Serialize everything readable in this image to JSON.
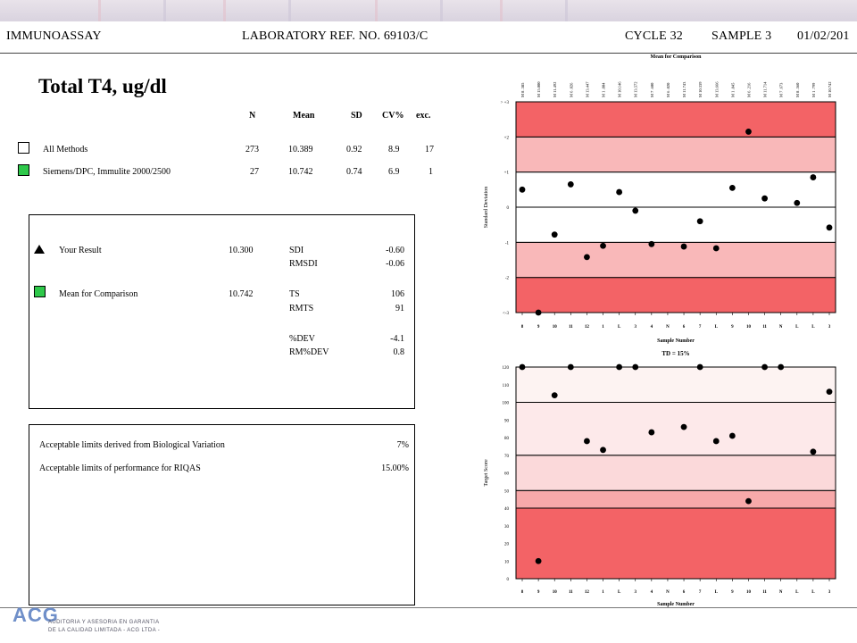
{
  "header": {
    "section": "IMMUNOASSAY",
    "lab_ref": "LABORATORY REF. NO.  69103/C",
    "cycle": "CYCLE 32",
    "sample": "SAMPLE 3",
    "date": "01/02/201"
  },
  "title": "Total T4, ug/dl",
  "stats": {
    "headers": [
      "N",
      "Mean",
      "SD",
      "CV%",
      "exc."
    ],
    "rows": [
      {
        "label": "All Methods",
        "n": "273",
        "mean": "10.389",
        "sd": "0.92",
        "cv": "8.9",
        "exc": "17",
        "marker": "white-box"
      },
      {
        "label": "Siemens/DPC, Immulite 2000/2500",
        "n": "27",
        "mean": "10.742",
        "sd": "0.74",
        "cv": "6.9",
        "exc": "1",
        "marker": "green-box"
      }
    ]
  },
  "results": {
    "your_result_label": "Your Result",
    "your_result_value": "10.300",
    "mean_comp_label": "Mean for Comparison",
    "mean_comp_value": "10.742",
    "metrics": [
      {
        "label": "SDI",
        "value": "-0.60"
      },
      {
        "label": "RMSDI",
        "value": "-0.06"
      },
      {
        "label": "TS",
        "value": "106"
      },
      {
        "label": "RMTS",
        "value": "91"
      },
      {
        "label": "%DEV",
        "value": "-4.1"
      },
      {
        "label": "RM%DEV",
        "value": "0.8"
      }
    ]
  },
  "limits": {
    "bio_label": "Acceptable limits derived from Biological Variation",
    "bio_value": "7%",
    "perf_label": "Acceptable limits of performance for  RIQAS",
    "perf_value": "15.00%"
  },
  "chart_data": [
    {
      "type": "scatter",
      "title": "Mean for Comparison",
      "xlabel": "Sample Number",
      "ylabel": "Standard Deviation",
      "ylim": [
        -3,
        3
      ],
      "y_tick_labels": [
        "> +3",
        "+2",
        "+1",
        "0",
        "-1",
        "-2",
        "<-3"
      ],
      "colors": {
        "outer": "#f36366",
        "middle": "#f9b8b9",
        "inner": "#ffffff"
      },
      "x": [
        "8",
        "9",
        "10",
        "11",
        "12",
        "1",
        "2",
        "3",
        "4",
        "5",
        "6",
        "7",
        "8",
        "9",
        "10",
        "11",
        "12",
        "1",
        "2",
        "3"
      ],
      "x_tick_labels": [
        "8",
        "9",
        "10",
        "11",
        "12",
        "1",
        "L",
        "3",
        "4",
        "N",
        "6",
        "7",
        "L",
        "9",
        "10",
        "11",
        "N",
        "L",
        "L",
        "3"
      ],
      "top_labels": [
        "M 8 .385",
        "M 15.000",
        "M 11.492",
        "M 6 .026",
        "M 13.447",
        "M 1 .804",
        "M 10.146",
        "M 13.572",
        "M 7 .600",
        "M 6 .020",
        "M 11.743",
        "M 10.339",
        "M 13.666",
        "M 1 .845",
        "M 6 .216",
        "M 11.714",
        "M 7 .673",
        "M 8 .560",
        "M 1 .799",
        "M 10.742"
      ],
      "series": [
        {
          "values": [
            0.5,
            -3.0,
            -0.78,
            0.65,
            -1.42,
            -1.1,
            0.43,
            -0.1,
            -1.05,
            null,
            -1.12,
            -0.4,
            -1.17,
            0.55,
            2.15,
            0.25,
            null,
            0.12,
            0.85,
            -0.58
          ]
        }
      ]
    },
    {
      "type": "scatter",
      "title": "TD = 15%",
      "xlabel": "Sample Number",
      "ylabel": "Target Score",
      "ylim": [
        0,
        120
      ],
      "y_ticks": [
        0,
        10,
        20,
        30,
        40,
        50,
        60,
        70,
        80,
        90,
        100,
        110,
        120
      ],
      "bands": [
        {
          "from": 0,
          "to": 40,
          "color": "#f36366"
        },
        {
          "from": 40,
          "to": 50,
          "color": "#f7a9aa"
        },
        {
          "from": 50,
          "to": 70,
          "color": "#fbd9da"
        },
        {
          "from": 70,
          "to": 100,
          "color": "#fde9ea"
        },
        {
          "from": 100,
          "to": 120,
          "color": "#fdf3f2"
        }
      ],
      "x": [
        "8",
        "9",
        "10",
        "11",
        "12",
        "1",
        "2",
        "3",
        "4",
        "5",
        "6",
        "7",
        "8",
        "9",
        "10",
        "11",
        "12",
        "1",
        "2",
        "3"
      ],
      "x_tick_labels": [
        "8",
        "9",
        "10",
        "11",
        "12",
        "1",
        "L",
        "3",
        "4",
        "N",
        "6",
        "7",
        "L",
        "9",
        "10",
        "11",
        "N",
        "L",
        "L",
        "3"
      ],
      "series": [
        {
          "values": [
            120,
            10,
            104,
            120,
            78,
            73,
            120,
            120,
            83,
            null,
            86,
            120,
            78,
            81,
            44,
            120,
            120,
            null,
            72,
            106
          ]
        }
      ]
    }
  ],
  "footer": {
    "logo": "ACG",
    "sub1": "AUDITORIA Y ASESORIA EN GARANTIA",
    "sub2": "DE LA CALIDAD LIMITADA - ACG LTDA -"
  }
}
